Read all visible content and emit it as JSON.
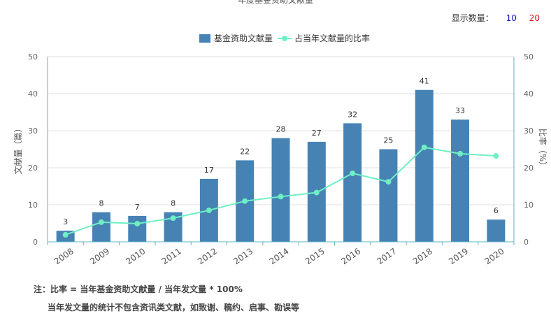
{
  "header": {
    "title": "年度基金资助文献量",
    "display_count_label": "显示数量：",
    "display_options": [
      "10",
      "20"
    ]
  },
  "notes": {
    "line1": "注：比率 = 当年基金资助文献量 / 当年发文量 * 100%",
    "line2": "当年发文量的统计不包含资讯类文献，如致谢、稿约、启事、勘误等"
  },
  "chart_data": {
    "type": "bar",
    "categories": [
      "2008",
      "2009",
      "2010",
      "2011",
      "2012",
      "2013",
      "2014",
      "2015",
      "2016",
      "2017",
      "2018",
      "2019",
      "2020"
    ],
    "series": [
      {
        "name": "基金资助文献量",
        "type": "bar",
        "axis": "left",
        "color": "#4682b4",
        "values": [
          3,
          8,
          7,
          8,
          17,
          22,
          28,
          27,
          32,
          25,
          41,
          33,
          6
        ]
      },
      {
        "name": "占当年文献量的比率",
        "type": "line",
        "axis": "right",
        "color": "#6fefc4",
        "values": [
          1.9,
          5.3,
          4.9,
          6.4,
          8.5,
          11.0,
          12.2,
          13.3,
          18.5,
          16.2,
          25.5,
          23.8,
          23.2
        ]
      }
    ],
    "ylabel": "文献量（篇）",
    "y2label": "比率（%）",
    "ylim": [
      0,
      50
    ],
    "y2lim": [
      0,
      50
    ],
    "yticks": [
      0,
      10,
      20,
      30,
      40,
      50
    ],
    "grid": true,
    "legend": "top-center",
    "bar_labels": true
  }
}
